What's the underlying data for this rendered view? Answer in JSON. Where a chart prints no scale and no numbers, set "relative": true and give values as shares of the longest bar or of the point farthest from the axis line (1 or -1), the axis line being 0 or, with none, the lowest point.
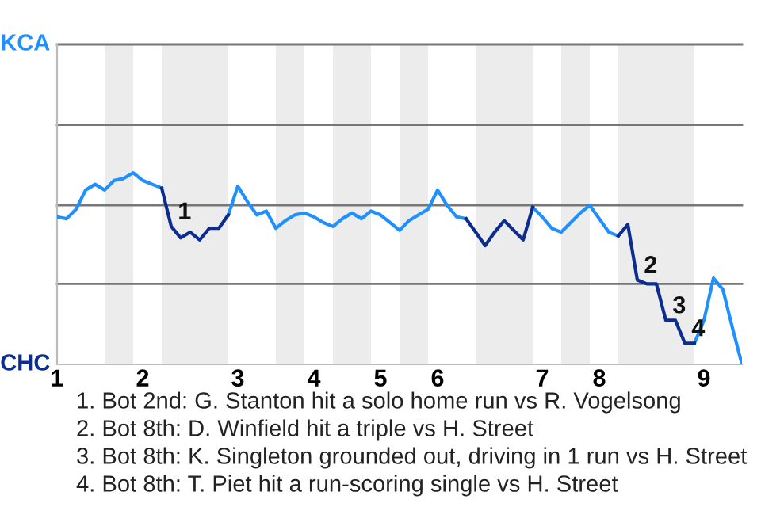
{
  "chart_data": {
    "type": "line",
    "relative": true,
    "categories": [
      "1",
      null,
      null,
      null,
      null,
      null,
      null,
      null,
      null,
      "2",
      null,
      null,
      null,
      null,
      null,
      null,
      null,
      null,
      null,
      "3",
      null,
      null,
      null,
      null,
      null,
      null,
      null,
      "4",
      null,
      null,
      null,
      null,
      null,
      null,
      "5",
      null,
      null,
      null,
      null,
      null,
      "6",
      null,
      null,
      null,
      null,
      null,
      null,
      null,
      null,
      null,
      null,
      "7",
      null,
      null,
      null,
      null,
      null,
      "8",
      null,
      null,
      null,
      null,
      null,
      null,
      null,
      null,
      null,
      null,
      "9",
      null,
      null,
      null,
      null
    ],
    "legend": false,
    "line_style": "solid",
    "marker": "none",
    "series": [
      {
        "color": "#1e90ff",
        "values": [
          0.77,
          0.76,
          0.81,
          0.91,
          0.94,
          0.91,
          0.96,
          0.97,
          1,
          0.96,
          0.94,
          0.92,
          null,
          null,
          null,
          null,
          null,
          null,
          0.78,
          0.93,
          0.85,
          0.78,
          0.8,
          0.71,
          0.75,
          0.78,
          0.79,
          0.77,
          0.74,
          0.72,
          0.76,
          0.79,
          0.76,
          0.8,
          0.78,
          0.74,
          0.7,
          0.75,
          0.78,
          0.81,
          0.91,
          0.83,
          0.77,
          0.76,
          null,
          null,
          null,
          null,
          null,
          null,
          0.82,
          0.77,
          0.71,
          0.69,
          0.74,
          0.79,
          0.83,
          0.76,
          0.69,
          0.67,
          null,
          null,
          null,
          null,
          null,
          null,
          null,
          0.11,
          0.23,
          0.45,
          0.39,
          0.19,
          0
        ]
      },
      {
        "color": "#0b2d8f",
        "values": [
          null,
          null,
          null,
          null,
          null,
          null,
          null,
          null,
          null,
          null,
          null,
          0.92,
          0.72,
          0.66,
          0.69,
          0.65,
          0.71,
          0.71,
          0.78,
          null,
          null,
          null,
          null,
          null,
          null,
          null,
          null,
          null,
          null,
          null,
          null,
          null,
          null,
          null,
          null,
          null,
          null,
          null,
          null,
          null,
          null,
          null,
          null,
          0.76,
          0.69,
          0.62,
          0.69,
          0.75,
          0.7,
          0.65,
          0.82,
          null,
          null,
          null,
          null,
          null,
          null,
          null,
          null,
          0.67,
          0.73,
          0.44,
          0.42,
          0.42,
          0.23,
          0.23,
          0.11,
          0.11,
          null,
          null,
          null,
          null,
          null
        ]
      }
    ],
    "ref_lines": [
      {
        "axis": "y",
        "value": 0.42,
        "color": "#777777"
      },
      {
        "axis": "y",
        "value": 0.83,
        "color": "#777777"
      },
      {
        "axis": "y",
        "value": 1.25,
        "color": "#777777"
      },
      {
        "axis": "y",
        "value": 1.67,
        "color": "#777777"
      }
    ],
    "annotations": [
      "KCA",
      "CHC",
      "1",
      "2",
      "3",
      "4",
      "1. Bot 2nd: G. Stanton hit a solo home run vs R. Vogelsong",
      "2. Bot 8th: D. Winfield hit a triple vs H. Street",
      "3. Bot 8th: K. Singleton grounded out, driving in 1 run vs H. Street",
      "4. Bot 8th: T. Piet hit a run-scoring single vs H. Street"
    ]
  }
}
